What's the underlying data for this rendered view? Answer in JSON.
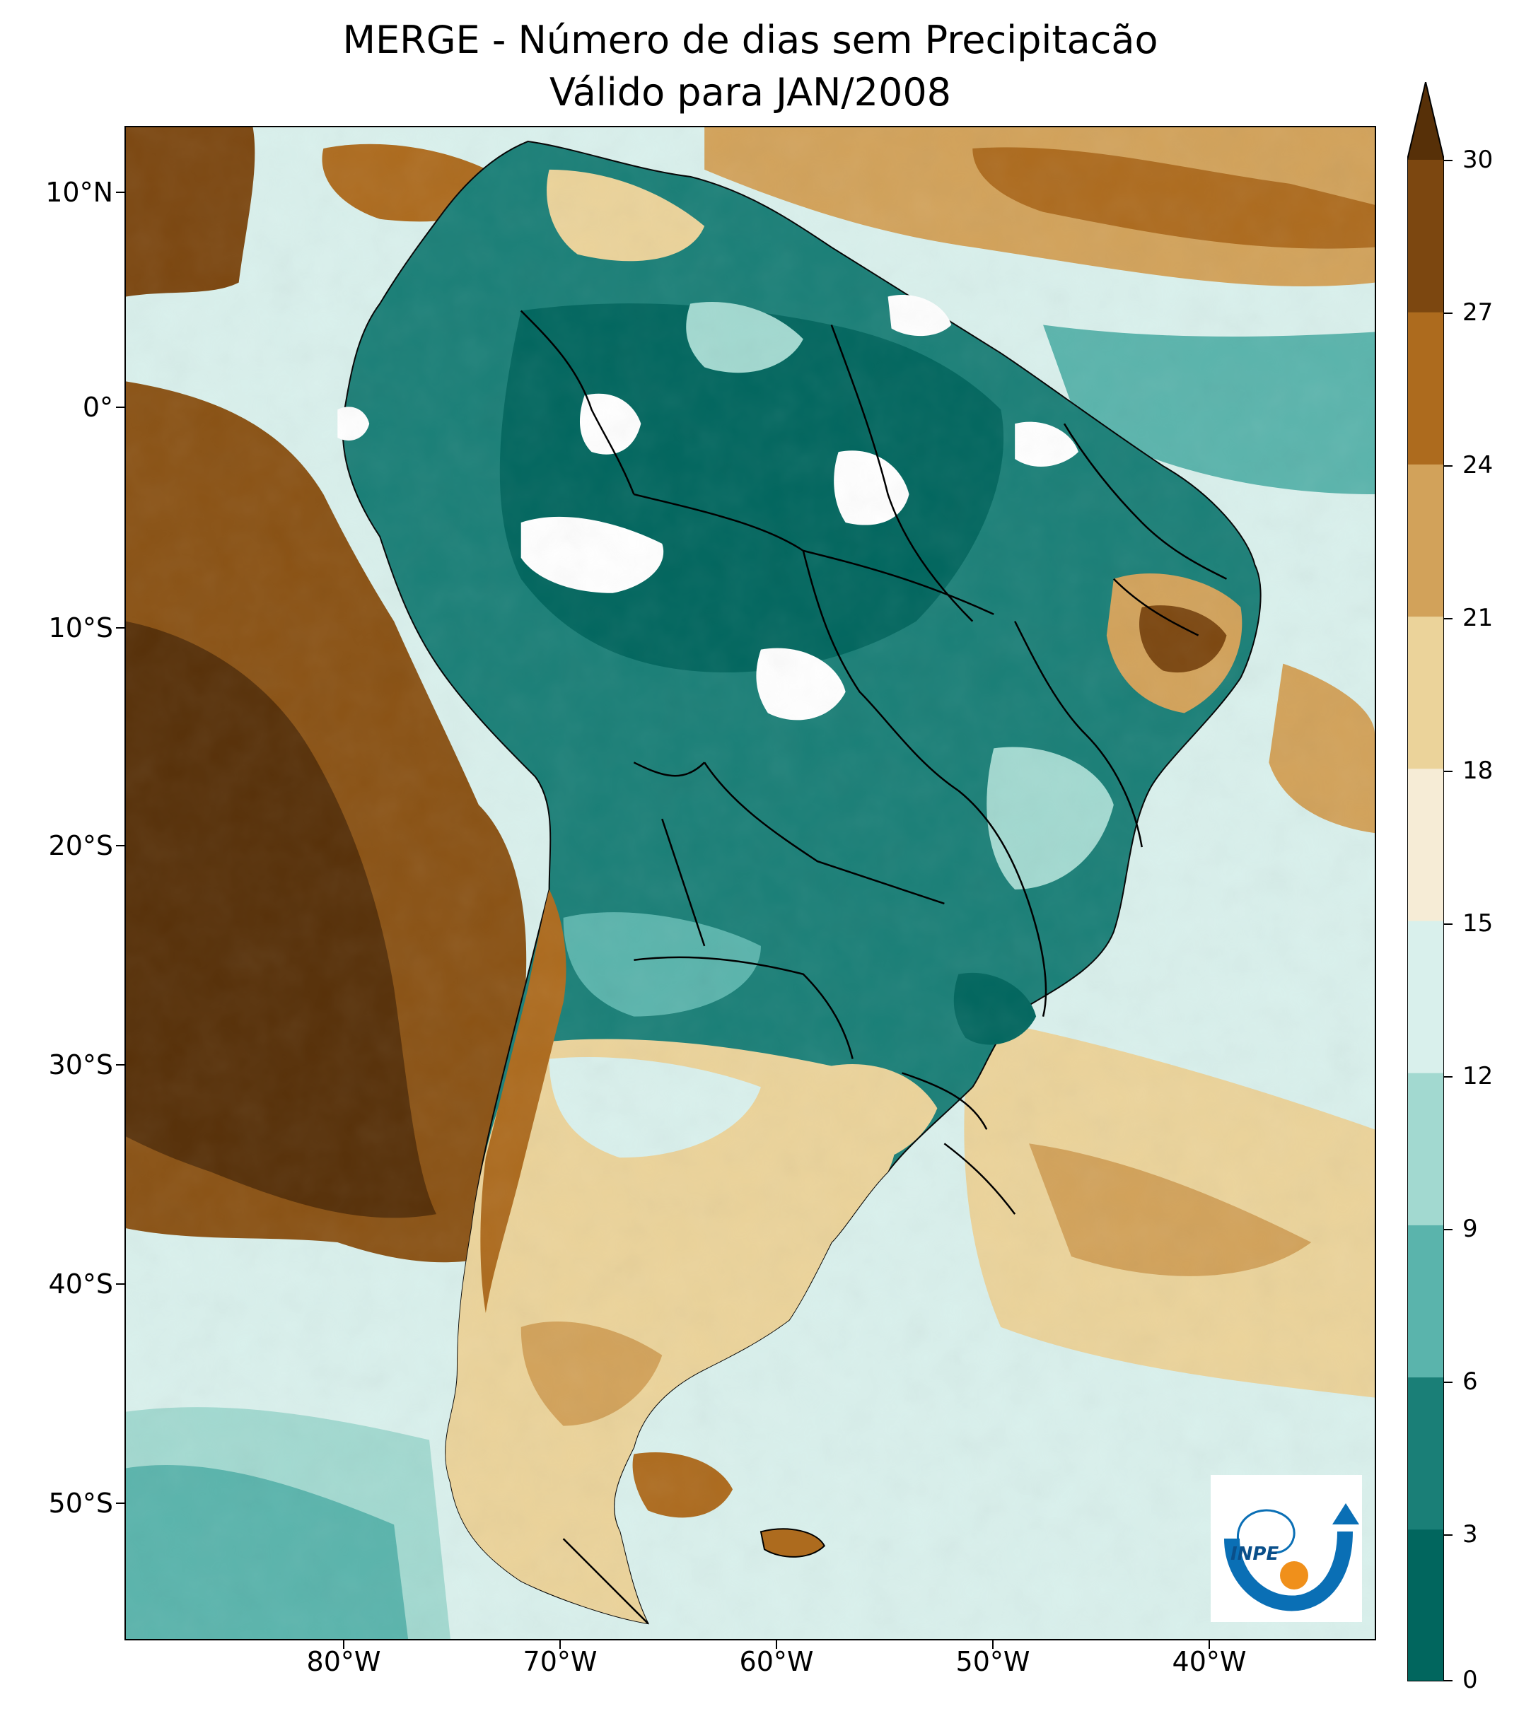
{
  "title": {
    "line1": "MERGE - Número de dias sem Precipitacão",
    "line2": "Válido para JAN/2008"
  },
  "axes": {
    "lat_labels": [
      "10°N",
      "0°",
      "10°S",
      "20°S",
      "30°S",
      "40°S",
      "50°S"
    ],
    "lon_labels": [
      "80°W",
      "70°W",
      "60°W",
      "50°W",
      "40°W"
    ],
    "lat_range": [
      -56,
      13
    ],
    "lon_range": [
      -90,
      -32
    ]
  },
  "colorbar": {
    "labels": [
      "0",
      "3",
      "6",
      "9",
      "12",
      "15",
      "18",
      "21",
      "24",
      "27",
      "30"
    ],
    "levels": [
      0,
      3,
      6,
      9,
      12,
      15,
      18,
      21,
      24,
      27,
      30
    ],
    "colors": [
      "#01665e",
      "#1a7f77",
      "#5ab4ac",
      "#a2d9d0",
      "#d9f0ec",
      "#f6ecd6",
      "#ebd39a",
      "#d2a25a",
      "#ad6b1e",
      "#7c4710",
      "#573008"
    ],
    "extend": "max"
  },
  "logo": {
    "text": "INPE",
    "colors": {
      "arc": "#0a6fb5",
      "dot": "#f0901b"
    }
  },
  "map": {
    "no_data_color": "#ffffff",
    "border_color": "#000000"
  }
}
